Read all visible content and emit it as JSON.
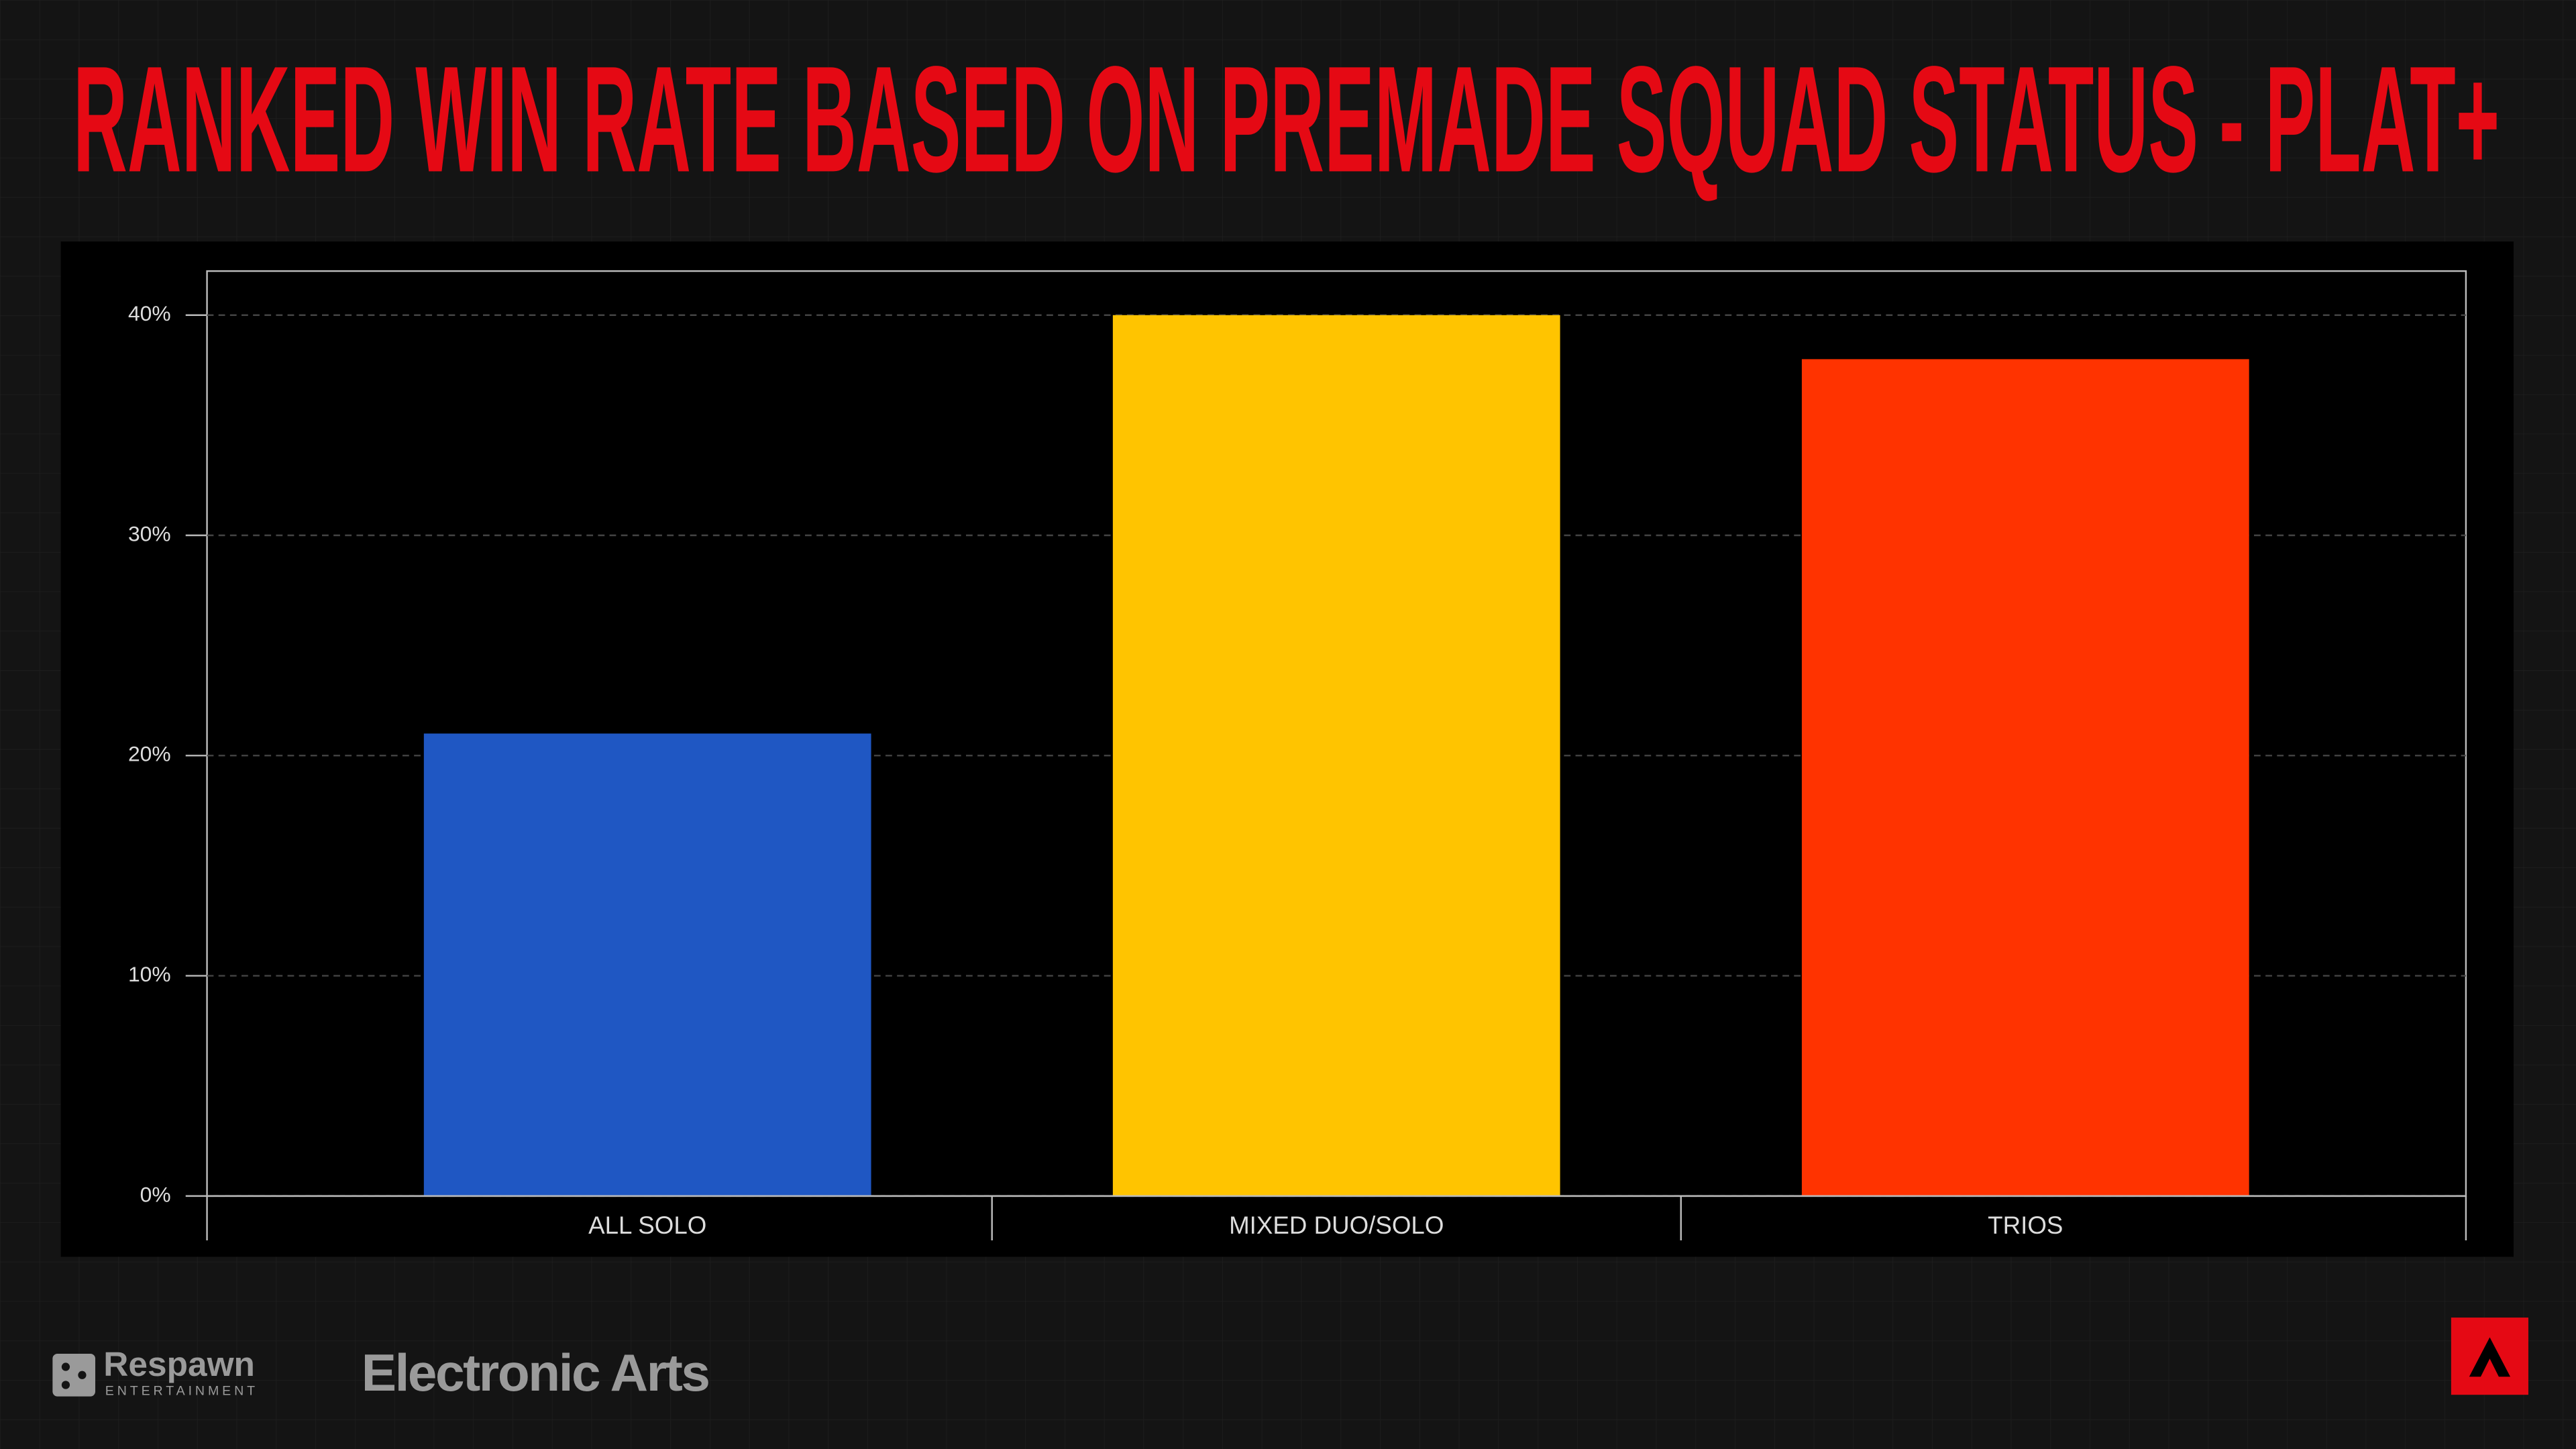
{
  "chart_data": {
    "type": "bar",
    "title": "RANKED WIN RATE BASED ON PREMADE SQUAD STATUS - PLAT+",
    "categories": [
      "ALL SOLO",
      "MIXED DUO/SOLO",
      "TRIOS"
    ],
    "values": [
      21,
      40,
      38
    ],
    "colors": [
      "#1f57c3",
      "#ffc400",
      "#ff3300"
    ],
    "ylim": [
      0,
      42
    ],
    "yticks": [
      {
        "value": 0,
        "label": "0%"
      },
      {
        "value": 10,
        "label": "10%"
      },
      {
        "value": 20,
        "label": "20%"
      },
      {
        "value": 30,
        "label": "30%"
      },
      {
        "value": 40,
        "label": "40%"
      }
    ],
    "grid": true
  },
  "footer": {
    "publisher_1": "Respawn",
    "publisher_1_sub": "ENTERTAINMENT",
    "publisher_2": "Electronic Arts"
  }
}
